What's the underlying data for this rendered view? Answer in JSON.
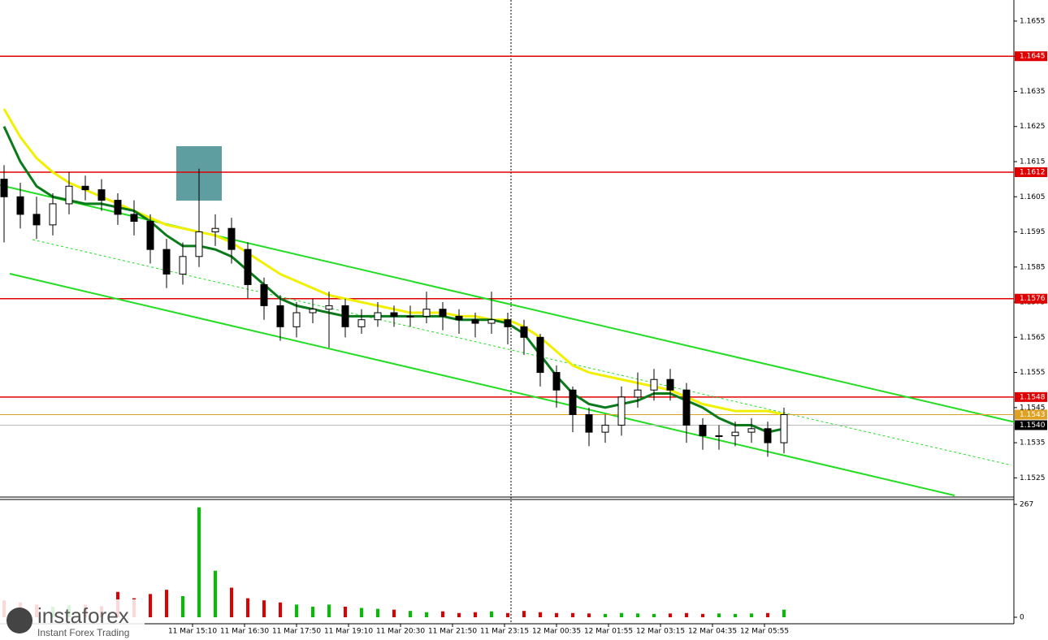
{
  "chart_data": {
    "type": "candlestick",
    "xlim": [
      -0.25,
      62.15
    ],
    "ylim": [
      1.152,
      1.1661
    ],
    "yticks": [
      1.1525,
      1.1535,
      1.1545,
      1.1555,
      1.1565,
      1.1575,
      1.1585,
      1.1595,
      1.1605,
      1.1615,
      1.1625,
      1.1635,
      1.1645,
      1.1655
    ],
    "xticks": [
      {
        "value": 11.6,
        "label": "11 Mar 15:10"
      },
      {
        "value": 14.8,
        "label": "11 Mar 16:30"
      },
      {
        "value": 18,
        "label": "11 Mar 17:50"
      },
      {
        "value": 21.2,
        "label": "11 Mar 19:10"
      },
      {
        "value": 24.4,
        "label": "11 Mar 20:30"
      },
      {
        "value": 27.6,
        "label": "11 Mar 21:50"
      },
      {
        "value": 30.8,
        "label": "11 Mar 23:15"
      },
      {
        "value": 34,
        "label": "12 Mar 00:35"
      },
      {
        "value": 37.2,
        "label": "12 Mar 01:55"
      },
      {
        "value": 40.4,
        "label": "12 Mar 03:15"
      },
      {
        "value": 43.6,
        "label": "12 Mar 04:35"
      },
      {
        "value": 46.8,
        "label": "12 Mar 05:55"
      }
    ],
    "open": [
      1.161,
      1.1605,
      1.16,
      1.1597,
      1.1603,
      1.1608,
      1.1607,
      1.1604,
      1.16,
      1.1598,
      1.159,
      1.1583,
      1.1588,
      1.1595,
      1.1596,
      1.159,
      1.158,
      1.1574,
      1.1568,
      1.1572,
      1.1573,
      1.1574,
      1.1568,
      1.157,
      1.1572,
      1.1571,
      1.1571,
      1.1573,
      1.1571,
      1.157,
      1.1569,
      1.157,
      1.1568,
      1.1565,
      1.1555,
      1.155,
      1.1543,
      1.1538,
      1.154,
      1.1548,
      1.155,
      1.1553,
      1.155,
      1.154,
      1.1537,
      1.1537,
      1.1538,
      1.1539,
      1.1535
    ],
    "high": [
      1.1614,
      1.1609,
      1.1605,
      1.1606,
      1.1612,
      1.1611,
      1.161,
      1.1606,
      1.1604,
      1.16,
      1.1593,
      1.1592,
      1.1613,
      1.16,
      1.1599,
      1.1592,
      1.1582,
      1.1577,
      1.1575,
      1.1576,
      1.1578,
      1.1576,
      1.1573,
      1.1575,
      1.1574,
      1.1574,
      1.1578,
      1.1575,
      1.1573,
      1.1572,
      1.1578,
      1.1572,
      1.157,
      1.1566,
      1.1557,
      1.1551,
      1.1545,
      1.1543,
      1.1551,
      1.1555,
      1.1556,
      1.1556,
      1.1552,
      1.1542,
      1.154,
      1.1541,
      1.1542,
      1.1541,
      1.1545
    ],
    "low": [
      1.1592,
      1.1596,
      1.1593,
      1.1594,
      1.16,
      1.1604,
      1.1601,
      1.1597,
      1.1594,
      1.1586,
      1.1579,
      1.158,
      1.1585,
      1.1591,
      1.1586,
      1.1576,
      1.157,
      1.1564,
      1.1565,
      1.1569,
      1.1562,
      1.1565,
      1.1566,
      1.1568,
      1.1568,
      1.1568,
      1.1569,
      1.1567,
      1.1566,
      1.1565,
      1.1566,
      1.1563,
      1.156,
      1.1551,
      1.1545,
      1.1538,
      1.1534,
      1.1535,
      1.1537,
      1.1545,
      1.1547,
      1.1547,
      1.1535,
      1.1533,
      1.1533,
      1.1534,
      1.1535,
      1.1531,
      1.1532
    ],
    "close": [
      1.1605,
      1.16,
      1.1597,
      1.1603,
      1.1608,
      1.1607,
      1.1604,
      1.16,
      1.1598,
      1.159,
      1.1583,
      1.1588,
      1.1595,
      1.1596,
      1.159,
      1.158,
      1.1574,
      1.1568,
      1.1572,
      1.1573,
      1.1574,
      1.1568,
      1.157,
      1.1572,
      1.1571,
      1.1571,
      1.1573,
      1.1571,
      1.157,
      1.1569,
      1.157,
      1.1568,
      1.1565,
      1.1555,
      1.155,
      1.1543,
      1.1538,
      1.154,
      1.1548,
      1.155,
      1.1553,
      1.155,
      1.154,
      1.1537,
      1.1537,
      1.1538,
      1.1539,
      1.1535,
      1.1543
    ],
    "up_color": "#ffffff",
    "down_color": "#000000",
    "moving_averages": [
      {
        "color": "#f0f000",
        "values": [
          1.163,
          1.1622,
          1.1616,
          1.1612,
          1.1609,
          1.1607,
          1.1605,
          1.1603,
          1.1601,
          1.1599,
          1.1597,
          1.1596,
          1.1595,
          1.1594,
          1.1592,
          1.1589,
          1.1586,
          1.1583,
          1.1581,
          1.1579,
          1.1577,
          1.1576,
          1.1575,
          1.1574,
          1.1573,
          1.1572,
          1.1572,
          1.1572,
          1.1571,
          1.1571,
          1.157,
          1.157,
          1.1568,
          1.1565,
          1.1561,
          1.1557,
          1.1555,
          1.1554,
          1.1553,
          1.1552,
          1.1551,
          1.155,
          1.1548,
          1.1546,
          1.1545,
          1.1544,
          1.1544,
          1.1544,
          1.1543
        ]
      },
      {
        "color": "#0a7a1a",
        "values": [
          1.1625,
          1.1615,
          1.1608,
          1.1605,
          1.1604,
          1.1603,
          1.1603,
          1.1602,
          1.1601,
          1.1598,
          1.1594,
          1.1591,
          1.1591,
          1.159,
          1.1588,
          1.1584,
          1.158,
          1.1576,
          1.1574,
          1.1573,
          1.1572,
          1.1571,
          1.1571,
          1.1571,
          1.1571,
          1.1571,
          1.1571,
          1.1571,
          1.157,
          1.157,
          1.157,
          1.1569,
          1.1566,
          1.156,
          1.1554,
          1.1549,
          1.1546,
          1.1545,
          1.1546,
          1.1547,
          1.1549,
          1.1549,
          1.1547,
          1.1545,
          1.1542,
          1.154,
          1.154,
          1.1538,
          1.1539
        ]
      }
    ],
    "levels": [
      {
        "value": 1.1645,
        "color": "#e00000"
      },
      {
        "value": 1.1612,
        "color": "#e00000"
      },
      {
        "value": 1.1576,
        "color": "#e00000"
      },
      {
        "value": 1.1548,
        "color": "#e00000"
      }
    ],
    "current_price": {
      "value": 1.1543,
      "color": "#e0a020"
    },
    "last_price": {
      "value": 1.154,
      "label": "1.1540"
    },
    "trendlines": [
      {
        "x": [
          -0.25,
          62.25
        ],
        "y": [
          1.16083,
          1.15408
        ],
        "color": "#22dd22",
        "dashed": false
      },
      {
        "x": [
          0.35,
          58.5
        ],
        "y": [
          1.15831,
          1.152
        ],
        "color": "#22dd22",
        "dashed": false
      },
      {
        "x": [
          1.75,
          62
        ],
        "y": [
          1.15928,
          1.15286
        ],
        "color": "#22dd22",
        "dashed": true
      }
    ],
    "signal_box": {
      "x": [
        10.6,
        13.4
      ],
      "y": [
        1.16039,
        1.16194
      ],
      "color": "#5f9ea0"
    },
    "session_line": 31.2,
    "volume": {
      "values": [
        40,
        35,
        30,
        25,
        28,
        30,
        26,
        60,
        45,
        55,
        65,
        50,
        260,
        110,
        70,
        45,
        40,
        35,
        30,
        25,
        30,
        25,
        22,
        20,
        18,
        15,
        12,
        14,
        10,
        12,
        14,
        10,
        15,
        12,
        10,
        10,
        9,
        8,
        10,
        9,
        8,
        9,
        10,
        8,
        9,
        8,
        9,
        10,
        18
      ],
      "ylim": [
        0,
        267
      ],
      "yticks": [
        267,
        0
      ],
      "up_color": "#00c000",
      "down_color": "#e00000"
    }
  },
  "logo": {
    "name": "instaforex",
    "tagline": "Instant Forex Trading"
  }
}
